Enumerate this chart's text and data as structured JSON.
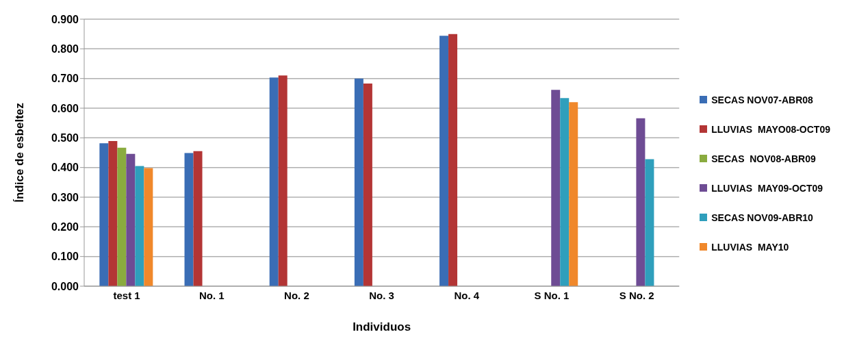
{
  "chart_data": {
    "type": "bar",
    "xlabel": "Individuos",
    "ylabel": "Índice de esbeltez",
    "categories": [
      "test 1",
      "No. 1",
      "No. 2",
      "No. 3",
      "No. 4",
      "S No. 1",
      "S No. 2"
    ],
    "series": [
      {
        "name": "SECAS NOV07-ABR08",
        "color": "#3a6db5",
        "values": [
          0.482,
          0.449,
          0.703,
          0.7,
          0.844,
          null,
          null
        ]
      },
      {
        "name": "LLUVIAS  MAYO08-OCT09",
        "color": "#b33535",
        "values": [
          0.489,
          0.455,
          0.71,
          0.683,
          0.85,
          null,
          null
        ]
      },
      {
        "name": "SECAS  NOV08-ABR09",
        "color": "#8aab3f",
        "values": [
          0.467,
          null,
          null,
          null,
          null,
          null,
          null
        ]
      },
      {
        "name": "LLUVIAS  MAY09-OCT09",
        "color": "#6e4c94",
        "values": [
          0.446,
          null,
          null,
          null,
          null,
          0.662,
          0.566
        ]
      },
      {
        "name": "SECAS NOV09-ABR10",
        "color": "#2f9fbc",
        "values": [
          0.405,
          null,
          null,
          null,
          null,
          0.634,
          0.428
        ]
      },
      {
        "name": "LLUVIAS  MAY10",
        "color": "#f0882b",
        "values": [
          0.398,
          null,
          null,
          null,
          null,
          0.62,
          null
        ]
      }
    ],
    "ylim": [
      0,
      0.9
    ],
    "yticks": [
      {
        "value": 0,
        "label": "0.000"
      },
      {
        "value": 0.1,
        "label": "0.100"
      },
      {
        "value": 0.2,
        "label": "0.200"
      },
      {
        "value": 0.3,
        "label": "0.300"
      },
      {
        "value": 0.4,
        "label": "0.400"
      },
      {
        "value": 0.5,
        "label": "0.500"
      },
      {
        "value": 0.6,
        "label": "0.600"
      },
      {
        "value": 0.7,
        "label": "0.700"
      },
      {
        "value": 0.8,
        "label": "0.800"
      },
      {
        "value": 0.9,
        "label": "0.900"
      }
    ],
    "grid": "y",
    "legend": "right"
  }
}
